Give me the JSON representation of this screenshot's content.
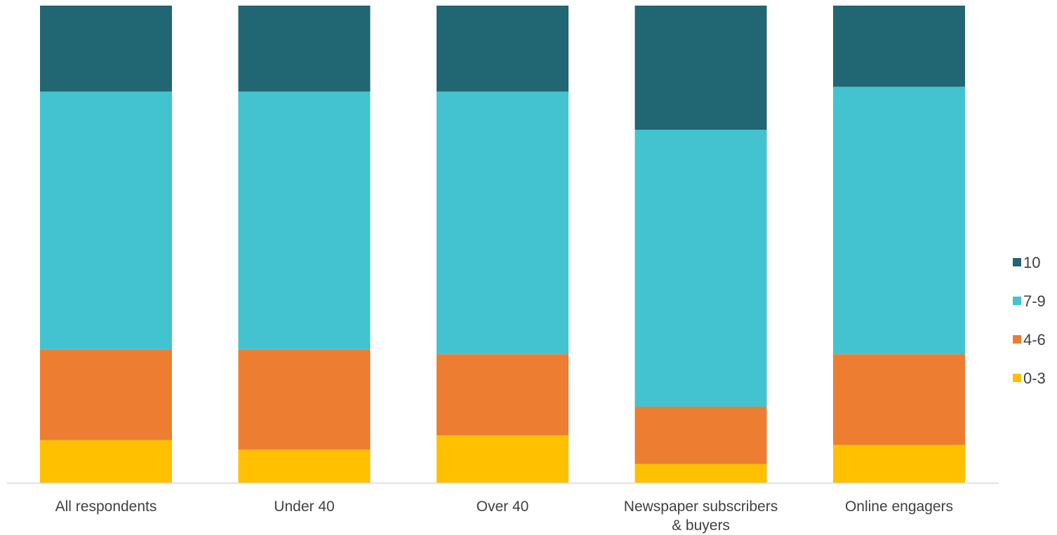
{
  "chart_data": {
    "type": "bar",
    "stacked": true,
    "normalized": true,
    "title": "",
    "xlabel": "",
    "ylabel": "",
    "ylim": [
      0,
      100
    ],
    "grid": false,
    "legend_position": "right",
    "categories": [
      [
        "All respondents"
      ],
      [
        "Under 40"
      ],
      [
        "Over 40"
      ],
      [
        "Newspaper subscribers",
        "& buyers"
      ],
      [
        "Online engagers"
      ]
    ],
    "series": [
      {
        "name": "0-3",
        "color": "#FFC000",
        "values": [
          9,
          7,
          10,
          4,
          8
        ]
      },
      {
        "name": "4-6",
        "color": "#ED7D31",
        "values": [
          19,
          21,
          17,
          12,
          19
        ]
      },
      {
        "name": "7-9",
        "color": "#43C3CF",
        "values": [
          54,
          54,
          55,
          58,
          56
        ]
      },
      {
        "name": "10",
        "color": "#216673",
        "values": [
          18,
          18,
          18,
          26,
          17
        ]
      }
    ],
    "legend_order": [
      "10",
      "7-9",
      "4-6",
      "0-3"
    ]
  }
}
